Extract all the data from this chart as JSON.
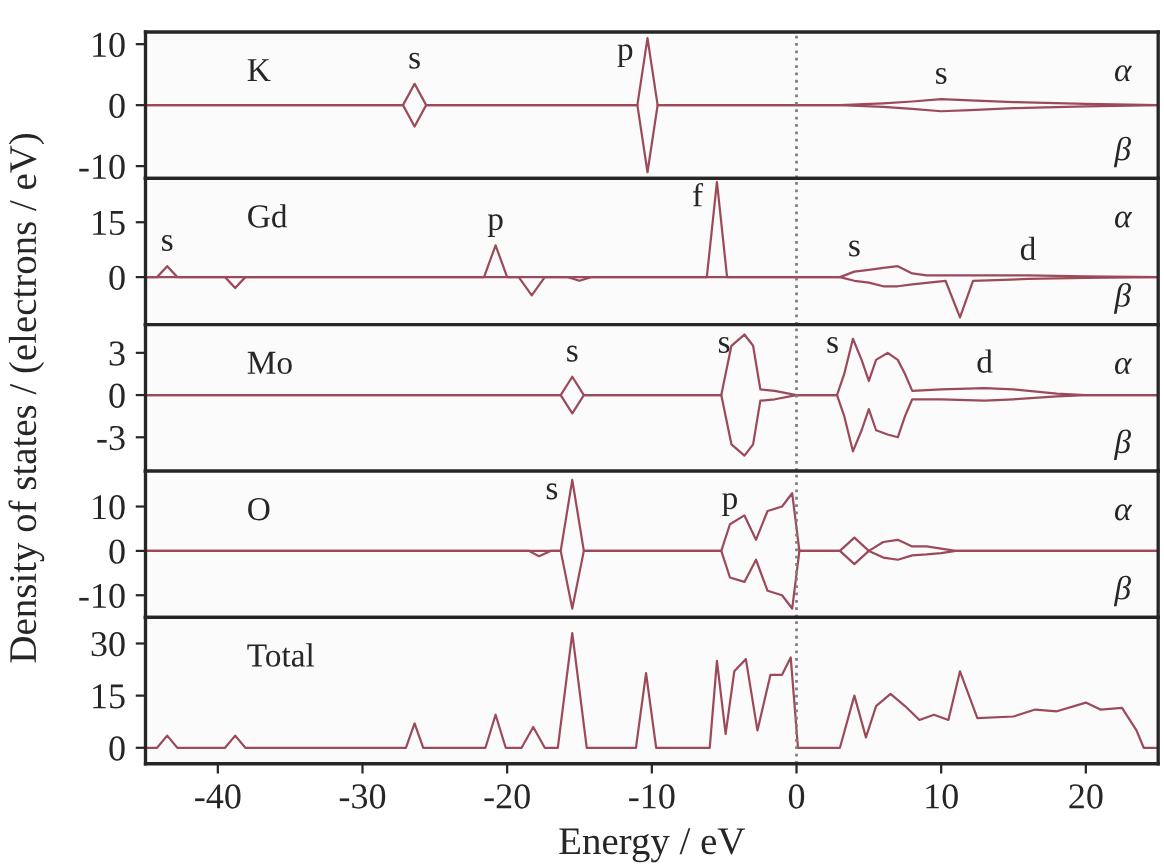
{
  "chart_data": [
    {
      "type": "line",
      "title": "K",
      "xlim": [
        -45,
        25
      ],
      "ylim": [
        -12,
        12
      ],
      "yticks": [
        -10,
        0,
        10
      ],
      "tick_labels": "y",
      "grid": false,
      "legend": false,
      "ref_lines": [
        {
          "axis": "x",
          "value": 0,
          "color": "#808080",
          "line_style": "dotted"
        }
      ],
      "annotations": [
        {
          "text": "s",
          "x": -26.4,
          "y": 3.5
        },
        {
          "text": "p",
          "x": -10.3,
          "y": 11
        },
        {
          "text": "s",
          "x": 10,
          "y": 1
        }
      ],
      "series": [
        {
          "name": "α",
          "color": "#9c4a5a",
          "x": [
            -45,
            -27.2,
            -26.4,
            -25.6,
            -11,
            -10.3,
            -9.6,
            3,
            6,
            8,
            10,
            12,
            15,
            20,
            25
          ],
          "values": [
            0,
            0,
            3.5,
            0,
            0,
            11,
            0,
            0,
            0.3,
            0.6,
            1,
            0.8,
            0.5,
            0.2,
            0
          ]
        },
        {
          "name": "β",
          "color": "#9c4a5a",
          "x": [
            -45,
            -27.2,
            -26.4,
            -25.6,
            -11,
            -10.3,
            -9.6,
            3,
            6,
            8,
            10,
            12,
            15,
            20,
            25
          ],
          "values": [
            0,
            0,
            -3.5,
            0,
            0,
            -11,
            0,
            0,
            -0.3,
            -0.6,
            -1,
            -0.8,
            -0.5,
            -0.2,
            0
          ]
        }
      ]
    },
    {
      "type": "line",
      "title": "Gd",
      "xlim": [
        -45,
        25
      ],
      "ylim": [
        -13,
        27
      ],
      "yticks": [
        0,
        15
      ],
      "tick_labels": "y",
      "grid": false,
      "legend": false,
      "ref_lines": [
        {
          "axis": "x",
          "value": 0,
          "color": "#808080",
          "line_style": "dotted"
        }
      ],
      "annotations": [
        {
          "text": "s",
          "x": -43.5,
          "y": 3
        },
        {
          "text": "p",
          "x": -20.8,
          "y": 8.7
        },
        {
          "text": "f",
          "x": -5.5,
          "y": 26
        },
        {
          "text": "s",
          "x": 4,
          "y": 1.5
        },
        {
          "text": "d",
          "x": 16,
          "y": 0.5
        }
      ],
      "series": [
        {
          "name": "α",
          "color": "#9c4a5a",
          "x": [
            -45,
            -44.2,
            -43.5,
            -42.8,
            -21.6,
            -20.8,
            -20,
            -6.2,
            -5.5,
            -4.8,
            3,
            4,
            5,
            6,
            7,
            8,
            9,
            12,
            16,
            20,
            25
          ],
          "values": [
            0,
            0,
            3,
            0,
            0,
            8.7,
            0,
            0,
            26,
            0,
            0,
            1.5,
            2,
            2.5,
            3,
            1,
            0.5,
            0.5,
            0.5,
            0.2,
            0
          ]
        },
        {
          "name": "β",
          "color": "#9c4a5a",
          "x": [
            -45,
            -39.5,
            -38.8,
            -38.1,
            -19.2,
            -18.3,
            -17.4,
            -15.8,
            -15,
            -14.2,
            3,
            4,
            5,
            6,
            7,
            8,
            10.3,
            11.3,
            12.2,
            16,
            20,
            25
          ],
          "values": [
            0,
            0,
            -3,
            0,
            0,
            -5,
            0,
            0,
            -1,
            0,
            0,
            -1,
            -1.5,
            -2.5,
            -2.5,
            -2,
            -1,
            -11,
            -1,
            -0.5,
            -0.2,
            0
          ]
        }
      ]
    },
    {
      "type": "line",
      "title": "Mo",
      "ylabel": "Density of states / (electrons / eV)",
      "xlim": [
        -45,
        25
      ],
      "ylim": [
        -5.4,
        5
      ],
      "yticks": [
        -3,
        0,
        3
      ],
      "tick_labels": "y",
      "grid": false,
      "legend": false,
      "ref_lines": [
        {
          "axis": "x",
          "value": 0,
          "color": "#808080",
          "line_style": "dotted"
        }
      ],
      "annotations": [
        {
          "text": "s",
          "x": -15.5,
          "y": 1.3
        },
        {
          "text": "s",
          "x": -3.6,
          "y": 4.3
        },
        {
          "text": "s",
          "x": 3.9,
          "y": 4
        },
        {
          "text": "d",
          "x": 13,
          "y": 0.5
        }
      ],
      "series": [
        {
          "name": "α",
          "color": "#9c4a5a",
          "x": [
            -45,
            -16.3,
            -15.5,
            -14.7,
            -5.2,
            -4.5,
            -3.6,
            -3,
            -2.5,
            -1.5,
            0,
            2.8,
            3.3,
            3.9,
            4.5,
            5,
            5.5,
            6.3,
            7,
            7.5,
            8,
            10,
            13,
            15,
            18,
            20,
            25
          ],
          "values": [
            0,
            0,
            1.3,
            0,
            0,
            3.5,
            4.3,
            3.5,
            0.4,
            0.3,
            0,
            0,
            1.5,
            4,
            2.5,
            1,
            2.5,
            3,
            2.5,
            1.5,
            0.3,
            0.4,
            0.5,
            0.4,
            0.1,
            0,
            0
          ]
        },
        {
          "name": "β",
          "color": "#9c4a5a",
          "x": [
            -45,
            -16.3,
            -15.5,
            -14.7,
            -5.2,
            -4.5,
            -3.6,
            -3,
            -2.5,
            -1.5,
            0,
            2.8,
            3.3,
            3.9,
            4.5,
            5,
            5.5,
            6.3,
            7,
            7.5,
            8,
            10,
            13,
            15,
            18,
            20,
            25
          ],
          "values": [
            0,
            0,
            -1.3,
            0,
            0,
            -3.5,
            -4.3,
            -3.5,
            -0.4,
            -0.3,
            0,
            0,
            -1.5,
            -4,
            -2.5,
            -1,
            -2.5,
            -2.8,
            -3,
            -1.5,
            -0.3,
            -0.3,
            -0.4,
            -0.3,
            -0.1,
            0,
            0
          ]
        }
      ]
    },
    {
      "type": "line",
      "title": "O",
      "xlim": [
        -45,
        25
      ],
      "ylim": [
        -15,
        18
      ],
      "yticks": [
        -10,
        0,
        10
      ],
      "tick_labels": "y",
      "grid": false,
      "legend": false,
      "ref_lines": [
        {
          "axis": "x",
          "value": 0,
          "color": "#808080",
          "line_style": "dotted"
        }
      ],
      "annotations": [
        {
          "text": "s",
          "x": -15.5,
          "y": 16
        },
        {
          "text": "p",
          "x": -4.6,
          "y": 6
        }
      ],
      "series": [
        {
          "name": "α",
          "color": "#9c4a5a",
          "x": [
            -45,
            -16.3,
            -15.5,
            -14.7,
            -5.2,
            -4.6,
            -3.6,
            -2.8,
            -2,
            -1,
            -0.3,
            0.2,
            3,
            4,
            5,
            6,
            7,
            8,
            9,
            10,
            11,
            25
          ],
          "values": [
            0,
            0,
            16,
            0,
            0,
            6,
            8,
            2.5,
            9,
            10,
            13,
            0,
            0,
            3,
            0,
            2,
            2.5,
            1,
            1,
            0.5,
            0,
            0
          ]
        },
        {
          "name": "β",
          "color": "#9c4a5a",
          "x": [
            -45,
            -18.5,
            -17.8,
            -17,
            -16.3,
            -15.5,
            -14.7,
            -5.2,
            -4.6,
            -3.6,
            -2.8,
            -2,
            -1,
            -0.3,
            0.2,
            3,
            4,
            5,
            6,
            7,
            8,
            9,
            10,
            11,
            25
          ],
          "values": [
            0,
            0,
            -1.2,
            0,
            0,
            -13,
            0,
            0,
            -6,
            -7,
            -2,
            -9,
            -10,
            -13,
            0,
            0,
            -3,
            0,
            -1.5,
            -2,
            -1,
            -0.8,
            -0.5,
            0,
            0
          ]
        }
      ]
    },
    {
      "type": "line",
      "title": "Total",
      "xlabel": "Energy / eV",
      "xlim": [
        -45,
        25
      ],
      "ylim": [
        -4.6,
        37.5
      ],
      "xticks": [
        -40,
        -30,
        -20,
        -10,
        0,
        10,
        20
      ],
      "yticks": [
        0,
        15,
        30
      ],
      "grid": false,
      "legend": false,
      "ref_lines": [
        {
          "axis": "x",
          "value": 0,
          "color": "#808080",
          "line_style": "dotted"
        }
      ],
      "series": [
        {
          "color": "#9c4a5a",
          "x": [
            -45,
            -44.2,
            -43.5,
            -42.8,
            -39.5,
            -38.8,
            -38.1,
            -27,
            -26.4,
            -25.8,
            -21.5,
            -20.8,
            -20.1,
            -19,
            -18.2,
            -17.4,
            -16.5,
            -15.5,
            -14.5,
            -11.1,
            -10.4,
            -9.7,
            -6,
            -5.5,
            -4.9,
            -4.3,
            -3.5,
            -2.7,
            -1.8,
            -1,
            -0.4,
            0.1,
            3,
            4,
            4.8,
            5.5,
            6.5,
            7.5,
            8.5,
            9.5,
            10.5,
            11.3,
            12.5,
            15,
            16.5,
            18,
            20,
            21,
            22.5,
            23.5,
            24,
            25
          ],
          "values": [
            0,
            0,
            3.5,
            0,
            0,
            3.5,
            0,
            0,
            7,
            0,
            0,
            9.5,
            0,
            0,
            6,
            0,
            0,
            33,
            0,
            0,
            21.5,
            0,
            0,
            25,
            4,
            22,
            25.5,
            5,
            21,
            21,
            26,
            0,
            0,
            15,
            3,
            12,
            15.5,
            12,
            8,
            9.5,
            8,
            22,
            8.5,
            9,
            11,
            10.5,
            13,
            11,
            11.5,
            5,
            0,
            0
          ]
        }
      ]
    }
  ]
}
